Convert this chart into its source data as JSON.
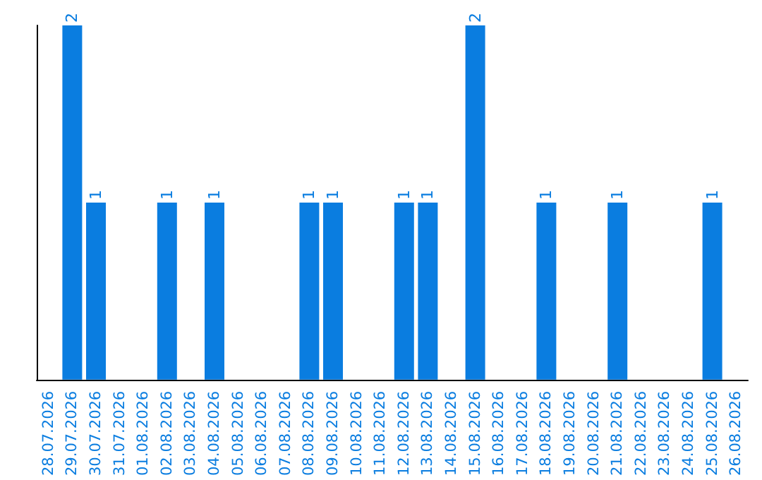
{
  "chart_data": {
    "type": "bar",
    "categories": [
      "28.07.2026",
      "29.07.2026",
      "30.07.2026",
      "31.07.2026",
      "01.08.2026",
      "02.08.2026",
      "03.08.2026",
      "04.08.2026",
      "05.08.2026",
      "06.08.2026",
      "07.08.2026",
      "08.08.2026",
      "09.08.2026",
      "10.08.2026",
      "11.08.2026",
      "12.08.2026",
      "13.08.2026",
      "14.08.2026",
      "15.08.2026",
      "16.08.2026",
      "17.08.2026",
      "18.08.2026",
      "19.08.2026",
      "20.08.2026",
      "21.08.2026",
      "22.08.2026",
      "23.08.2026",
      "24.08.2026",
      "25.08.2026",
      "26.08.2026"
    ],
    "values": [
      0,
      2,
      1,
      0,
      0,
      1,
      0,
      1,
      0,
      0,
      0,
      1,
      1,
      0,
      0,
      1,
      1,
      0,
      2,
      0,
      0,
      1,
      0,
      0,
      1,
      0,
      0,
      0,
      1,
      0
    ],
    "value_labels": [
      null,
      "2",
      "1",
      null,
      null,
      "1",
      null,
      "1",
      null,
      null,
      null,
      "1",
      "1",
      null,
      null,
      "1",
      "1",
      null,
      "2",
      null,
      null,
      "1",
      null,
      null,
      "1",
      null,
      null,
      null,
      "1",
      null
    ],
    "color": "#0a7de0",
    "grid": false,
    "tick_labels": "x"
  }
}
